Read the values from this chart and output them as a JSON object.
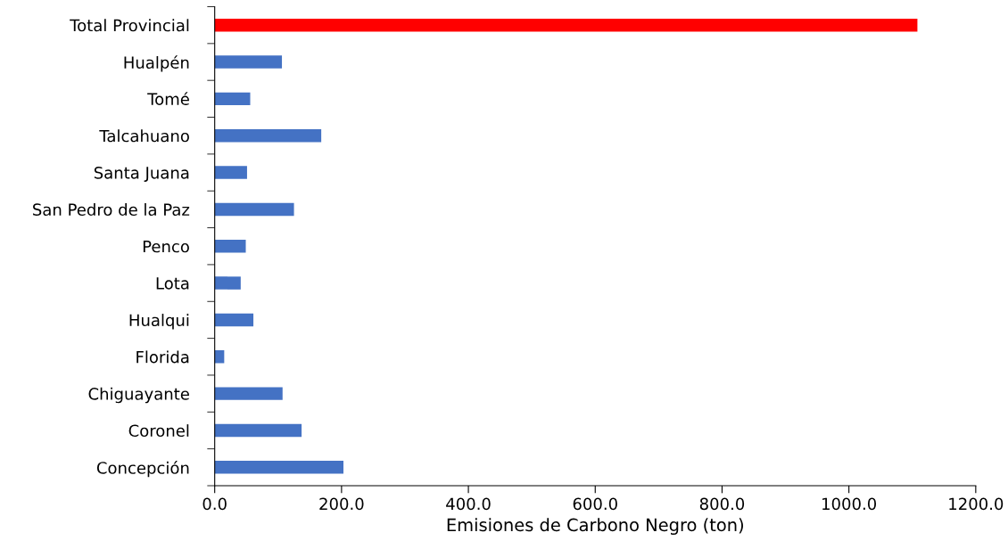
{
  "chart_data": {
    "type": "bar",
    "orientation": "horizontal",
    "xlabel": "Emisiones de Carbono Negro (ton)",
    "categories": [
      "Total Provincial",
      "Hualpén",
      "Tomé",
      "Talcahuano",
      "Santa Juana",
      "San Pedro de la Paz",
      "Penco",
      "Lota",
      "Hualqui",
      "Florida",
      "Chiguayante",
      "Coronel",
      "Concepción"
    ],
    "values": [
      1108,
      106,
      56,
      168,
      51,
      125,
      49,
      41,
      61,
      15,
      107,
      137,
      203
    ],
    "colors": [
      "#ff0000",
      "#4472c4",
      "#4472c4",
      "#4472c4",
      "#4472c4",
      "#4472c4",
      "#4472c4",
      "#4472c4",
      "#4472c4",
      "#4472c4",
      "#4472c4",
      "#4472c4",
      "#4472c4"
    ],
    "xlim": [
      0,
      1200
    ],
    "xticks": [
      {
        "value": 0,
        "label": "0.0"
      },
      {
        "value": 200,
        "label": "200.0"
      },
      {
        "value": 400,
        "label": "400.0"
      },
      {
        "value": 600,
        "label": "600.0"
      },
      {
        "value": 800,
        "label": "800.0"
      },
      {
        "value": 1000,
        "label": "1000.0"
      },
      {
        "value": 1200,
        "label": "1200.0"
      }
    ],
    "grid": false
  }
}
